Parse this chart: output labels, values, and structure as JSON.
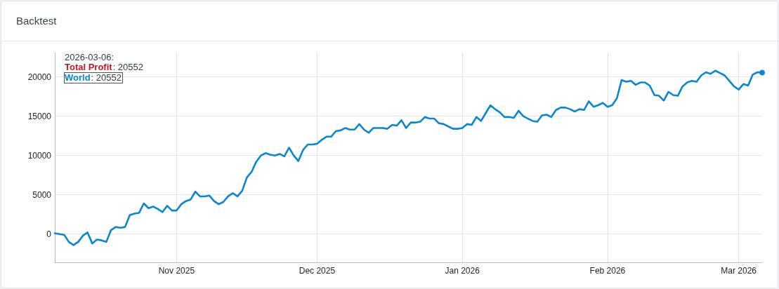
{
  "chart_data": {
    "type": "line",
    "title": "Backtest",
    "legend_title": "2026-03-06:",
    "annotations": [
      ": 20552",
      ": 20552"
    ],
    "x": [
      "2025-10-06",
      "2025-10-07",
      "2025-10-08",
      "2025-10-09",
      "2025-10-10",
      "2025-10-11",
      "2025-10-12",
      "2025-10-13",
      "2025-10-14",
      "2025-10-15",
      "2025-10-16",
      "2025-10-17",
      "2025-10-18",
      "2025-10-19",
      "2025-10-20",
      "2025-10-21",
      "2025-10-22",
      "2025-10-23",
      "2025-10-24",
      "2025-10-25",
      "2025-10-26",
      "2025-10-27",
      "2025-10-28",
      "2025-10-29",
      "2025-10-30",
      "2025-10-31",
      "2025-11-01",
      "2025-11-02",
      "2025-11-03",
      "2025-11-04",
      "2025-11-05",
      "2025-11-06",
      "2025-11-07",
      "2025-11-08",
      "2025-11-09",
      "2025-11-10",
      "2025-11-11",
      "2025-11-12",
      "2025-11-13",
      "2025-11-14",
      "2025-11-15",
      "2025-11-16",
      "2025-11-17",
      "2025-11-18",
      "2025-11-19",
      "2025-11-20",
      "2025-11-21",
      "2025-11-22",
      "2025-11-23",
      "2025-11-24",
      "2025-11-25",
      "2025-11-26",
      "2025-11-27",
      "2025-11-28",
      "2025-11-29",
      "2025-11-30",
      "2025-12-01",
      "2025-12-02",
      "2025-12-03",
      "2025-12-04",
      "2025-12-05",
      "2025-12-06",
      "2025-12-07",
      "2025-12-08",
      "2025-12-09",
      "2025-12-10",
      "2025-12-11",
      "2025-12-12",
      "2025-12-13",
      "2025-12-14",
      "2025-12-15",
      "2025-12-16",
      "2025-12-17",
      "2025-12-18",
      "2025-12-19",
      "2025-12-20",
      "2025-12-21",
      "2025-12-22",
      "2025-12-23",
      "2025-12-24",
      "2025-12-25",
      "2025-12-26",
      "2025-12-27",
      "2025-12-28",
      "2025-12-29",
      "2025-12-30",
      "2025-12-31",
      "2026-01-01",
      "2026-01-02",
      "2026-01-03",
      "2026-01-04",
      "2026-01-05",
      "2026-01-06",
      "2026-01-07",
      "2026-01-08",
      "2026-01-09",
      "2026-01-10",
      "2026-01-11",
      "2026-01-12",
      "2026-01-13",
      "2026-01-14",
      "2026-01-15",
      "2026-01-16",
      "2026-01-17",
      "2026-01-18",
      "2026-01-19",
      "2026-01-20",
      "2026-01-21",
      "2026-01-22",
      "2026-01-23",
      "2026-01-24",
      "2026-01-25",
      "2026-01-26",
      "2026-01-27",
      "2026-01-28",
      "2026-01-29",
      "2026-01-30",
      "2026-01-31",
      "2026-02-01",
      "2026-02-02",
      "2026-02-03",
      "2026-02-04",
      "2026-02-05",
      "2026-02-06",
      "2026-02-07",
      "2026-02-08",
      "2026-02-09",
      "2026-02-10",
      "2026-02-11",
      "2026-02-12",
      "2026-02-13",
      "2026-02-14",
      "2026-02-15",
      "2026-02-16",
      "2026-02-17",
      "2026-02-18",
      "2026-02-19",
      "2026-02-20",
      "2026-02-21",
      "2026-02-22",
      "2026-02-23",
      "2026-02-24",
      "2026-02-25",
      "2026-02-26",
      "2026-02-27",
      "2026-02-28",
      "2026-03-01",
      "2026-03-02",
      "2026-03-03",
      "2026-03-04",
      "2026-03-05",
      "2026-03-06"
    ],
    "series": [
      {
        "name": "Total Profit",
        "color": "#c4161c",
        "values": [
          null,
          null,
          null,
          null,
          null,
          null,
          null,
          null,
          null,
          null,
          null,
          null,
          null,
          null,
          null,
          null,
          null,
          null,
          null,
          null,
          null,
          null,
          null,
          null,
          null,
          null,
          null,
          null,
          null,
          null,
          null,
          null,
          null,
          null,
          null,
          null,
          null,
          null,
          null,
          null,
          null,
          null,
          null,
          null,
          null,
          null,
          null,
          null,
          null,
          null,
          null,
          null,
          null,
          null,
          null,
          null,
          null,
          null,
          null,
          null,
          null,
          null,
          null,
          null,
          null,
          null,
          null,
          null,
          null,
          null,
          null,
          null,
          null,
          null,
          null,
          null,
          null,
          null,
          null,
          null,
          null,
          null,
          null,
          null,
          null,
          null,
          null,
          null,
          null,
          null,
          null,
          null,
          null,
          null,
          null,
          null,
          null,
          null,
          null,
          null,
          null,
          null,
          null,
          null,
          null,
          null,
          null,
          null,
          null,
          null,
          null,
          null,
          null,
          null,
          null,
          null,
          null,
          null,
          null,
          null,
          null,
          null,
          null,
          null,
          null,
          null,
          null,
          null,
          null,
          null,
          null,
          null,
          null,
          null,
          null,
          null,
          null,
          null,
          null,
          null,
          null,
          null,
          null,
          null,
          null,
          null,
          null,
          null,
          null,
          null,
          null,
          null
        ]
      },
      {
        "name": "World",
        "color": "#0a87d0",
        "values": [
          100,
          0,
          -100,
          -1000,
          -1400,
          -1000,
          -200,
          200,
          -1200,
          -700,
          -800,
          -1000,
          500,
          900,
          800,
          900,
          2400,
          2600,
          2700,
          3900,
          3300,
          3500,
          3200,
          2800,
          3600,
          3000,
          3000,
          3800,
          4200,
          4400,
          5400,
          4800,
          4800,
          4900,
          4200,
          3800,
          4100,
          4800,
          5200,
          4800,
          5500,
          7200,
          7900,
          9200,
          10000,
          10300,
          10100,
          10000,
          10200,
          9900,
          11000,
          10000,
          9300,
          10700,
          11400,
          11400,
          11500,
          12000,
          12400,
          12400,
          13100,
          13200,
          13500,
          13300,
          13300,
          14000,
          13300,
          12900,
          13500,
          13500,
          13500,
          13400,
          13900,
          13800,
          14500,
          13500,
          14200,
          14200,
          14300,
          14900,
          14700,
          14700,
          14100,
          14000,
          13700,
          13400,
          13400,
          13500,
          14000,
          13900,
          14900,
          14400,
          15400,
          16400,
          15900,
          15500,
          14900,
          14900,
          14800,
          15700,
          15000,
          14700,
          14400,
          14300,
          15100,
          15200,
          14900,
          15800,
          16100,
          16100,
          15900,
          15600,
          15900,
          15800,
          16900,
          16200,
          16400,
          16700,
          16200,
          16400,
          17300,
          19600,
          19400,
          19500,
          19000,
          19300,
          19300,
          18900,
          17700,
          17600,
          17000,
          18100,
          17700,
          17600,
          18800,
          19300,
          19500,
          19400,
          20200,
          20600,
          20400,
          20800,
          20500,
          20200,
          19500,
          18800,
          18400,
          19100,
          18900,
          20300,
          20600,
          20552
        ]
      }
    ],
    "xlim": [
      "2025-10-06",
      "2026-03-06"
    ],
    "xticks": [
      {
        "value": "2025-11-01",
        "label": "Nov 2025"
      },
      {
        "value": "2025-12-01",
        "label": "Dec 2025"
      },
      {
        "value": "2026-01-01",
        "label": "Jan 2026"
      },
      {
        "value": "2026-02-01",
        "label": "Feb 2026"
      },
      {
        "value": "2026-03-01",
        "label": "Mar 2026"
      }
    ],
    "ylim": [
      -3600,
      23100
    ],
    "yticks": [
      0,
      5000,
      10000,
      15000,
      20000
    ],
    "grid": true,
    "legend": "top left"
  }
}
